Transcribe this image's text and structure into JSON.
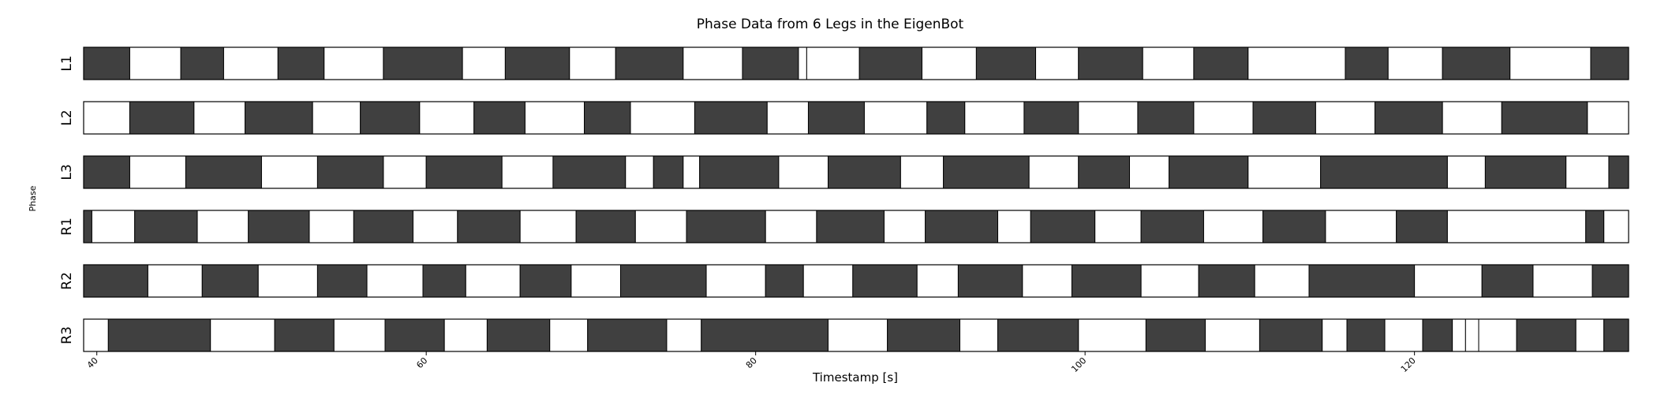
{
  "chart_data": {
    "type": "timeline",
    "title": "Phase Data from 6 Legs in the EigenBot",
    "xlabel": "Timestamp [s]",
    "ylabel": "Phase",
    "xlim": [
      39.2,
      133.0
    ],
    "xticks": [
      40,
      60,
      80,
      100,
      120
    ],
    "colors": {
      "stance": "#404040",
      "swing": "#ffffff",
      "border": "#000000"
    },
    "rows": [
      {
        "name": "L1",
        "segments": [
          {
            "start": 39.2,
            "end": 42.0,
            "state": "stance"
          },
          {
            "start": 42.0,
            "end": 45.1,
            "state": "swing"
          },
          {
            "start": 45.1,
            "end": 47.7,
            "state": "stance"
          },
          {
            "start": 47.7,
            "end": 51.0,
            "state": "swing"
          },
          {
            "start": 51.0,
            "end": 53.8,
            "state": "stance"
          },
          {
            "start": 53.8,
            "end": 57.4,
            "state": "swing"
          },
          {
            "start": 57.4,
            "end": 62.2,
            "state": "stance"
          },
          {
            "start": 62.2,
            "end": 64.8,
            "state": "swing"
          },
          {
            "start": 64.8,
            "end": 68.7,
            "state": "stance"
          },
          {
            "start": 68.7,
            "end": 71.5,
            "state": "swing"
          },
          {
            "start": 71.5,
            "end": 75.6,
            "state": "stance"
          },
          {
            "start": 75.6,
            "end": 79.2,
            "state": "swing"
          },
          {
            "start": 79.2,
            "end": 82.6,
            "state": "stance"
          },
          {
            "start": 82.6,
            "end": 83.1,
            "state": "swing"
          },
          {
            "start": 83.1,
            "end": 86.3,
            "state": "swing"
          },
          {
            "start": 86.3,
            "end": 90.1,
            "state": "stance"
          },
          {
            "start": 90.1,
            "end": 93.4,
            "state": "swing"
          },
          {
            "start": 93.4,
            "end": 97.0,
            "state": "stance"
          },
          {
            "start": 97.0,
            "end": 99.6,
            "state": "swing"
          },
          {
            "start": 99.6,
            "end": 103.5,
            "state": "stance"
          },
          {
            "start": 103.5,
            "end": 106.6,
            "state": "swing"
          },
          {
            "start": 106.6,
            "end": 109.9,
            "state": "stance"
          },
          {
            "start": 109.9,
            "end": 115.8,
            "state": "swing"
          },
          {
            "start": 115.8,
            "end": 118.4,
            "state": "stance"
          },
          {
            "start": 118.4,
            "end": 121.7,
            "state": "swing"
          },
          {
            "start": 121.7,
            "end": 125.8,
            "state": "stance"
          },
          {
            "start": 125.8,
            "end": 130.7,
            "state": "swing"
          },
          {
            "start": 130.7,
            "end": 133.0,
            "state": "stance"
          }
        ]
      },
      {
        "name": "L2",
        "segments": [
          {
            "start": 39.2,
            "end": 42.0,
            "state": "swing"
          },
          {
            "start": 42.0,
            "end": 45.9,
            "state": "stance"
          },
          {
            "start": 45.9,
            "end": 49.0,
            "state": "swing"
          },
          {
            "start": 49.0,
            "end": 53.1,
            "state": "stance"
          },
          {
            "start": 53.1,
            "end": 56.0,
            "state": "swing"
          },
          {
            "start": 56.0,
            "end": 59.6,
            "state": "stance"
          },
          {
            "start": 59.6,
            "end": 62.9,
            "state": "swing"
          },
          {
            "start": 62.9,
            "end": 66.0,
            "state": "stance"
          },
          {
            "start": 66.0,
            "end": 69.6,
            "state": "swing"
          },
          {
            "start": 69.6,
            "end": 72.4,
            "state": "stance"
          },
          {
            "start": 72.4,
            "end": 76.3,
            "state": "swing"
          },
          {
            "start": 76.3,
            "end": 80.7,
            "state": "stance"
          },
          {
            "start": 80.7,
            "end": 83.2,
            "state": "swing"
          },
          {
            "start": 83.2,
            "end": 86.6,
            "state": "stance"
          },
          {
            "start": 86.6,
            "end": 90.4,
            "state": "swing"
          },
          {
            "start": 90.4,
            "end": 92.7,
            "state": "stance"
          },
          {
            "start": 92.7,
            "end": 96.3,
            "state": "swing"
          },
          {
            "start": 96.3,
            "end": 99.6,
            "state": "stance"
          },
          {
            "start": 99.6,
            "end": 103.2,
            "state": "swing"
          },
          {
            "start": 103.2,
            "end": 106.6,
            "state": "stance"
          },
          {
            "start": 106.6,
            "end": 110.2,
            "state": "swing"
          },
          {
            "start": 110.2,
            "end": 114.0,
            "state": "stance"
          },
          {
            "start": 114.0,
            "end": 117.6,
            "state": "swing"
          },
          {
            "start": 117.6,
            "end": 121.7,
            "state": "stance"
          },
          {
            "start": 121.7,
            "end": 125.3,
            "state": "swing"
          },
          {
            "start": 125.3,
            "end": 130.5,
            "state": "stance"
          },
          {
            "start": 130.5,
            "end": 133.0,
            "state": "swing"
          }
        ]
      },
      {
        "name": "L3",
        "segments": [
          {
            "start": 39.2,
            "end": 42.0,
            "state": "stance"
          },
          {
            "start": 42.0,
            "end": 45.4,
            "state": "swing"
          },
          {
            "start": 45.4,
            "end": 50.0,
            "state": "stance"
          },
          {
            "start": 50.0,
            "end": 53.4,
            "state": "swing"
          },
          {
            "start": 53.4,
            "end": 57.4,
            "state": "stance"
          },
          {
            "start": 57.4,
            "end": 60.0,
            "state": "swing"
          },
          {
            "start": 60.0,
            "end": 64.6,
            "state": "stance"
          },
          {
            "start": 64.6,
            "end": 67.7,
            "state": "swing"
          },
          {
            "start": 67.7,
            "end": 72.1,
            "state": "stance"
          },
          {
            "start": 72.1,
            "end": 73.8,
            "state": "swing"
          },
          {
            "start": 73.8,
            "end": 75.6,
            "state": "stance"
          },
          {
            "start": 75.6,
            "end": 76.6,
            "state": "swing"
          },
          {
            "start": 76.6,
            "end": 81.4,
            "state": "stance"
          },
          {
            "start": 81.4,
            "end": 84.4,
            "state": "swing"
          },
          {
            "start": 84.4,
            "end": 88.8,
            "state": "stance"
          },
          {
            "start": 88.8,
            "end": 91.4,
            "state": "swing"
          },
          {
            "start": 91.4,
            "end": 96.6,
            "state": "stance"
          },
          {
            "start": 96.6,
            "end": 99.6,
            "state": "swing"
          },
          {
            "start": 99.6,
            "end": 102.7,
            "state": "stance"
          },
          {
            "start": 102.7,
            "end": 105.1,
            "state": "swing"
          },
          {
            "start": 105.1,
            "end": 109.9,
            "state": "stance"
          },
          {
            "start": 109.9,
            "end": 114.3,
            "state": "swing"
          },
          {
            "start": 114.3,
            "end": 122.0,
            "state": "stance"
          },
          {
            "start": 122.0,
            "end": 124.3,
            "state": "swing"
          },
          {
            "start": 124.3,
            "end": 129.2,
            "state": "stance"
          },
          {
            "start": 129.2,
            "end": 131.8,
            "state": "swing"
          },
          {
            "start": 131.8,
            "end": 133.0,
            "state": "stance"
          }
        ]
      },
      {
        "name": "R1",
        "segments": [
          {
            "start": 39.2,
            "end": 39.7,
            "state": "stance"
          },
          {
            "start": 39.7,
            "end": 42.3,
            "state": "swing"
          },
          {
            "start": 42.3,
            "end": 46.1,
            "state": "stance"
          },
          {
            "start": 46.1,
            "end": 49.2,
            "state": "swing"
          },
          {
            "start": 49.2,
            "end": 52.9,
            "state": "stance"
          },
          {
            "start": 52.9,
            "end": 55.6,
            "state": "swing"
          },
          {
            "start": 55.6,
            "end": 59.2,
            "state": "stance"
          },
          {
            "start": 59.2,
            "end": 61.9,
            "state": "swing"
          },
          {
            "start": 61.9,
            "end": 65.7,
            "state": "stance"
          },
          {
            "start": 65.7,
            "end": 69.1,
            "state": "swing"
          },
          {
            "start": 69.1,
            "end": 72.7,
            "state": "stance"
          },
          {
            "start": 72.7,
            "end": 75.8,
            "state": "swing"
          },
          {
            "start": 75.8,
            "end": 80.6,
            "state": "stance"
          },
          {
            "start": 80.6,
            "end": 83.7,
            "state": "swing"
          },
          {
            "start": 83.7,
            "end": 87.8,
            "state": "stance"
          },
          {
            "start": 87.8,
            "end": 90.3,
            "state": "swing"
          },
          {
            "start": 90.3,
            "end": 94.7,
            "state": "stance"
          },
          {
            "start": 94.7,
            "end": 96.7,
            "state": "swing"
          },
          {
            "start": 96.7,
            "end": 100.6,
            "state": "stance"
          },
          {
            "start": 100.6,
            "end": 103.4,
            "state": "swing"
          },
          {
            "start": 103.4,
            "end": 107.2,
            "state": "stance"
          },
          {
            "start": 107.2,
            "end": 110.8,
            "state": "swing"
          },
          {
            "start": 110.8,
            "end": 114.6,
            "state": "stance"
          },
          {
            "start": 114.6,
            "end": 118.9,
            "state": "swing"
          },
          {
            "start": 118.9,
            "end": 122.0,
            "state": "stance"
          },
          {
            "start": 122.0,
            "end": 130.4,
            "state": "swing"
          },
          {
            "start": 130.4,
            "end": 131.5,
            "state": "stance"
          },
          {
            "start": 131.5,
            "end": 133.0,
            "state": "swing"
          }
        ]
      },
      {
        "name": "R2",
        "segments": [
          {
            "start": 39.2,
            "end": 43.1,
            "state": "stance"
          },
          {
            "start": 43.1,
            "end": 46.4,
            "state": "swing"
          },
          {
            "start": 46.4,
            "end": 49.8,
            "state": "stance"
          },
          {
            "start": 49.8,
            "end": 53.4,
            "state": "swing"
          },
          {
            "start": 53.4,
            "end": 56.4,
            "state": "stance"
          },
          {
            "start": 56.4,
            "end": 59.8,
            "state": "swing"
          },
          {
            "start": 59.8,
            "end": 62.4,
            "state": "stance"
          },
          {
            "start": 62.4,
            "end": 65.7,
            "state": "swing"
          },
          {
            "start": 65.7,
            "end": 68.8,
            "state": "stance"
          },
          {
            "start": 68.8,
            "end": 71.8,
            "state": "swing"
          },
          {
            "start": 71.8,
            "end": 77.0,
            "state": "stance"
          },
          {
            "start": 77.0,
            "end": 80.6,
            "state": "swing"
          },
          {
            "start": 80.6,
            "end": 82.9,
            "state": "stance"
          },
          {
            "start": 82.9,
            "end": 85.9,
            "state": "swing"
          },
          {
            "start": 85.9,
            "end": 89.8,
            "state": "stance"
          },
          {
            "start": 89.8,
            "end": 92.3,
            "state": "swing"
          },
          {
            "start": 92.3,
            "end": 96.2,
            "state": "stance"
          },
          {
            "start": 96.2,
            "end": 99.2,
            "state": "swing"
          },
          {
            "start": 99.2,
            "end": 103.4,
            "state": "stance"
          },
          {
            "start": 103.4,
            "end": 106.9,
            "state": "swing"
          },
          {
            "start": 106.9,
            "end": 110.3,
            "state": "stance"
          },
          {
            "start": 110.3,
            "end": 113.6,
            "state": "swing"
          },
          {
            "start": 113.6,
            "end": 120.0,
            "state": "stance"
          },
          {
            "start": 120.0,
            "end": 124.1,
            "state": "swing"
          },
          {
            "start": 124.1,
            "end": 127.2,
            "state": "stance"
          },
          {
            "start": 127.2,
            "end": 130.8,
            "state": "swing"
          },
          {
            "start": 130.8,
            "end": 133.0,
            "state": "stance"
          }
        ]
      },
      {
        "name": "R3",
        "segments": [
          {
            "start": 39.2,
            "end": 40.7,
            "state": "swing"
          },
          {
            "start": 40.7,
            "end": 46.9,
            "state": "stance"
          },
          {
            "start": 46.9,
            "end": 50.8,
            "state": "swing"
          },
          {
            "start": 50.8,
            "end": 54.4,
            "state": "stance"
          },
          {
            "start": 54.4,
            "end": 57.5,
            "state": "swing"
          },
          {
            "start": 57.5,
            "end": 61.1,
            "state": "stance"
          },
          {
            "start": 61.1,
            "end": 63.7,
            "state": "swing"
          },
          {
            "start": 63.7,
            "end": 67.5,
            "state": "stance"
          },
          {
            "start": 67.5,
            "end": 69.8,
            "state": "swing"
          },
          {
            "start": 69.8,
            "end": 74.6,
            "state": "stance"
          },
          {
            "start": 74.6,
            "end": 76.7,
            "state": "swing"
          },
          {
            "start": 76.7,
            "end": 84.4,
            "state": "stance"
          },
          {
            "start": 84.4,
            "end": 88.0,
            "state": "swing"
          },
          {
            "start": 88.0,
            "end": 92.4,
            "state": "stance"
          },
          {
            "start": 92.4,
            "end": 94.7,
            "state": "swing"
          },
          {
            "start": 94.7,
            "end": 99.6,
            "state": "stance"
          },
          {
            "start": 99.6,
            "end": 103.7,
            "state": "swing"
          },
          {
            "start": 103.7,
            "end": 107.3,
            "state": "stance"
          },
          {
            "start": 107.3,
            "end": 110.6,
            "state": "swing"
          },
          {
            "start": 110.6,
            "end": 114.4,
            "state": "stance"
          },
          {
            "start": 114.4,
            "end": 115.9,
            "state": "swing"
          },
          {
            "start": 115.9,
            "end": 118.2,
            "state": "stance"
          },
          {
            "start": 118.2,
            "end": 120.5,
            "state": "swing"
          },
          {
            "start": 120.5,
            "end": 122.3,
            "state": "stance"
          },
          {
            "start": 122.3,
            "end": 123.1,
            "state": "swing"
          },
          {
            "start": 123.1,
            "end": 123.9,
            "state": "swing"
          },
          {
            "start": 123.9,
            "end": 126.2,
            "state": "swing"
          },
          {
            "start": 126.2,
            "end": 129.8,
            "state": "stance"
          },
          {
            "start": 129.8,
            "end": 131.5,
            "state": "swing"
          },
          {
            "start": 131.5,
            "end": 133.0,
            "state": "stance"
          }
        ]
      }
    ]
  }
}
